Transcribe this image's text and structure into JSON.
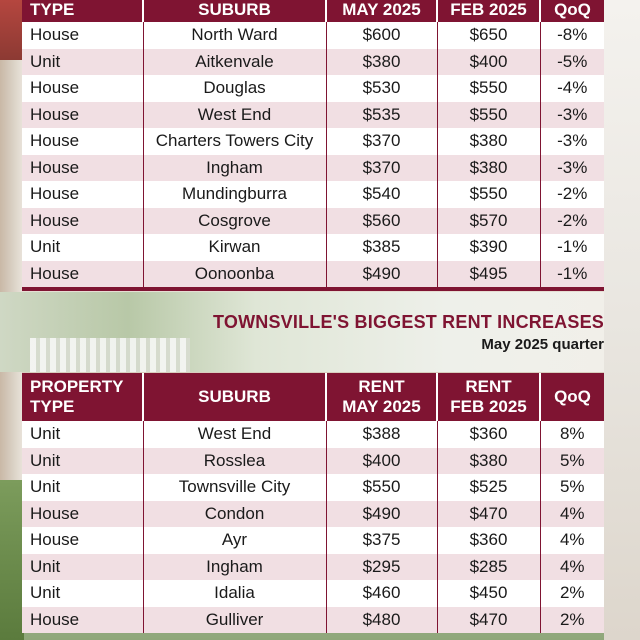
{
  "decreases_table": {
    "headers": {
      "type": "TYPE",
      "suburb": "SUBURB",
      "rent_may": "MAY 2025",
      "rent_feb": "FEB 2025",
      "qoq": "QoQ"
    },
    "rows": [
      {
        "type": "House",
        "suburb": "North Ward",
        "may": "$600",
        "feb": "$650",
        "qoq": "-8%"
      },
      {
        "type": "Unit",
        "suburb": "Aitkenvale",
        "may": "$380",
        "feb": "$400",
        "qoq": "-5%"
      },
      {
        "type": "House",
        "suburb": "Douglas",
        "may": "$530",
        "feb": "$550",
        "qoq": "-4%"
      },
      {
        "type": "House",
        "suburb": "West End",
        "may": "$535",
        "feb": "$550",
        "qoq": "-3%"
      },
      {
        "type": "House",
        "suburb": "Charters Towers City",
        "may": "$370",
        "feb": "$380",
        "qoq": "-3%"
      },
      {
        "type": "House",
        "suburb": "Ingham",
        "may": "$370",
        "feb": "$380",
        "qoq": "-3%"
      },
      {
        "type": "House",
        "suburb": "Mundingburra",
        "may": "$540",
        "feb": "$550",
        "qoq": "-2%"
      },
      {
        "type": "House",
        "suburb": "Cosgrove",
        "may": "$560",
        "feb": "$570",
        "qoq": "-2%"
      },
      {
        "type": "Unit",
        "suburb": "Kirwan",
        "may": "$385",
        "feb": "$390",
        "qoq": "-1%"
      },
      {
        "type": "House",
        "suburb": "Oonoonba",
        "may": "$490",
        "feb": "$495",
        "qoq": "-1%"
      }
    ]
  },
  "increases_section": {
    "title": "TOWNSVILLE'S BIGGEST RENT INCREASES",
    "subtitle": "May 2025 quarter"
  },
  "increases_table": {
    "headers": {
      "type_1": "PROPERTY",
      "type_2": "TYPE",
      "suburb": "SUBURB",
      "rent_may_1": "RENT",
      "rent_may_2": "MAY 2025",
      "rent_feb_1": "RENT",
      "rent_feb_2": "FEB 2025",
      "qoq": "QoQ"
    },
    "rows": [
      {
        "type": "Unit",
        "suburb": "West End",
        "may": "$388",
        "feb": "$360",
        "qoq": "8%"
      },
      {
        "type": "Unit",
        "suburb": "Rosslea",
        "may": "$400",
        "feb": "$380",
        "qoq": "5%"
      },
      {
        "type": "Unit",
        "suburb": "Townsville City",
        "may": "$550",
        "feb": "$525",
        "qoq": "5%"
      },
      {
        "type": "House",
        "suburb": "Condon",
        "may": "$490",
        "feb": "$470",
        "qoq": "4%"
      },
      {
        "type": "House",
        "suburb": "Ayr",
        "may": "$375",
        "feb": "$360",
        "qoq": "4%"
      },
      {
        "type": "Unit",
        "suburb": "Ingham",
        "may": "$295",
        "feb": "$285",
        "qoq": "4%"
      },
      {
        "type": "Unit",
        "suburb": "Idalia",
        "may": "$460",
        "feb": "$450",
        "qoq": "2%"
      },
      {
        "type": "House",
        "suburb": "Gulliver",
        "may": "$480",
        "feb": "$470",
        "qoq": "2%"
      }
    ]
  }
}
